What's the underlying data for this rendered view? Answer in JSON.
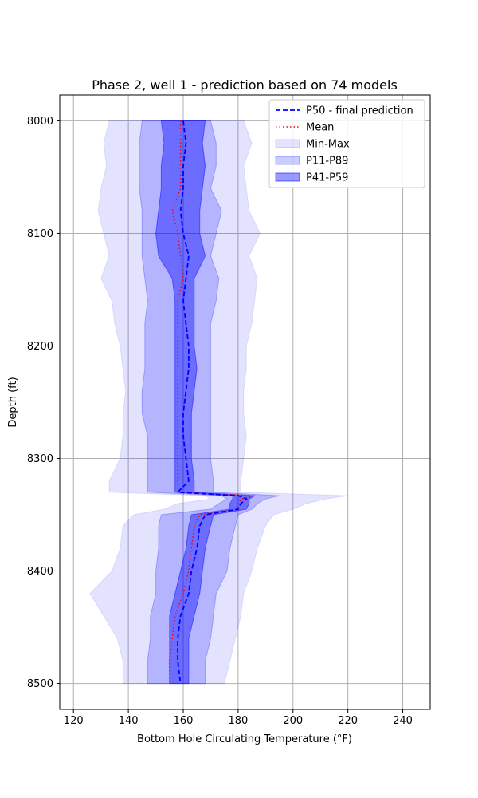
{
  "chart_data": {
    "type": "line",
    "title": "Phase 2, well 1 - prediction based on 74 models",
    "xlabel": "Bottom Hole Circulating Temperature (°F)",
    "ylabel": "Depth (ft)",
    "xlim": [
      115,
      250
    ],
    "ylim": [
      8523,
      7977
    ],
    "y_inverted": true,
    "grid": true,
    "legend_position": "top-right",
    "x_ticks": [
      120,
      140,
      160,
      180,
      200,
      220,
      240
    ],
    "y_ticks": [
      8000,
      8100,
      8200,
      8300,
      8400,
      8500
    ],
    "colors": {
      "p50": "#0000ff",
      "mean": "#ff0000",
      "band": "#0000ff",
      "grid": "#b0b0b0"
    },
    "legend": [
      {
        "key": "p50",
        "label": "P50 - final prediction"
      },
      {
        "key": "mean",
        "label": "Mean"
      },
      {
        "key": "minmax",
        "label": "Min-Max"
      },
      {
        "key": "p11p89",
        "label": "P11-P89"
      },
      {
        "key": "p41p59",
        "label": "P41-P59"
      }
    ],
    "depth": [
      8000,
      8020,
      8040,
      8060,
      8080,
      8100,
      8120,
      8140,
      8160,
      8180,
      8200,
      8220,
      8240,
      8260,
      8280,
      8300,
      8320,
      8330,
      8333,
      8336,
      8340,
      8345,
      8350,
      8360,
      8380,
      8400,
      8420,
      8440,
      8460,
      8480,
      8500
    ],
    "series": [
      {
        "name": "P50 - final prediction",
        "key": "p50",
        "values": [
          160,
          161,
          160,
          160,
          159,
          160,
          162,
          161,
          160,
          161,
          162,
          162,
          161,
          160,
          160,
          161,
          162,
          158,
          180,
          183,
          181,
          180,
          168,
          166,
          165,
          163,
          162,
          159,
          158,
          158,
          159
        ]
      },
      {
        "name": "Mean",
        "key": "mean",
        "values": [
          159,
          159,
          159,
          159,
          156,
          158,
          159,
          160,
          158,
          158,
          158,
          158,
          158,
          158,
          158,
          158,
          158,
          158,
          186,
          181,
          180,
          180,
          166,
          164,
          163,
          162,
          160,
          157,
          156,
          155,
          155
        ]
      },
      {
        "name": "Min-Max",
        "key": "minmax",
        "low": [
          133,
          131,
          132,
          130,
          129,
          131,
          133,
          130,
          134,
          135,
          137,
          138,
          139,
          138,
          138,
          137,
          133,
          133,
          168,
          170,
          158,
          153,
          142,
          138,
          137,
          134,
          126,
          131,
          136,
          138,
          138
        ],
        "high": [
          182,
          185,
          182,
          183,
          184,
          188,
          184,
          187,
          186,
          185,
          183,
          183,
          182,
          182,
          183,
          182,
          181,
          181,
          220,
          212,
          205,
          200,
          193,
          190,
          187,
          185,
          182,
          181,
          179,
          177,
          175
        ]
      },
      {
        "name": "P11-P89",
        "key": "p11p89",
        "low": [
          145,
          144,
          144,
          144,
          145,
          145,
          145,
          146,
          147,
          146,
          146,
          146,
          145,
          145,
          147,
          147,
          147,
          147,
          174,
          176,
          173,
          170,
          152,
          151,
          151,
          150,
          150,
          148,
          148,
          147,
          147
        ],
        "high": [
          170,
          172,
          172,
          170,
          174,
          172,
          170,
          173,
          172,
          170,
          170,
          170,
          170,
          170,
          170,
          170,
          171,
          171,
          195,
          190,
          187,
          185,
          180,
          179,
          177,
          176,
          172,
          171,
          170,
          168,
          168
        ]
      },
      {
        "name": "P41-P59",
        "key": "p41p59",
        "low": [
          152,
          153,
          152,
          152,
          151,
          150,
          151,
          156,
          157,
          157,
          157,
          157,
          157,
          157,
          157,
          157,
          157,
          157,
          178,
          178,
          177,
          177,
          163,
          162,
          161,
          159,
          157,
          155,
          155,
          155,
          155
        ],
        "high": [
          168,
          167,
          168,
          167,
          166,
          166,
          168,
          164,
          164,
          164,
          164,
          165,
          164,
          163,
          163,
          163,
          164,
          164,
          186,
          184,
          184,
          183,
          171,
          170,
          168,
          167,
          166,
          164,
          162,
          162,
          162
        ]
      }
    ]
  }
}
